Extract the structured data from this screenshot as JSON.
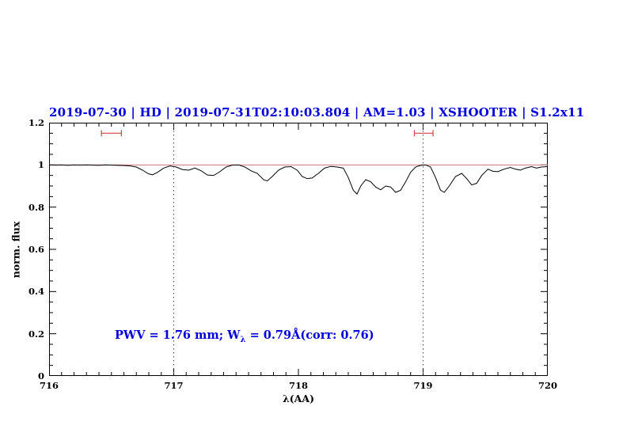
{
  "chart_data": {
    "type": "line",
    "title": "2019-07-30 | HD | 2019-07-31T02:10:03.804 | AM=1.03 | XSHOOTER | S1.2x11",
    "title_color": "#0000dd",
    "xlabel": "λ(AA)",
    "ylabel": "norm. flux",
    "xlim": [
      716,
      720
    ],
    "ylim": [
      0,
      1.2
    ],
    "x_major_ticks": [
      716,
      717,
      718,
      719,
      720
    ],
    "x_tick_labels": [
      "716",
      "717",
      "718",
      "719",
      "720"
    ],
    "x_minor_step": 0.1,
    "y_major_ticks": [
      0,
      0.2,
      0.4,
      0.6,
      0.8,
      1,
      1.2
    ],
    "y_tick_labels": [
      "0",
      "0.2",
      "0.4",
      "0.6",
      "0.8",
      "1",
      "1.2"
    ],
    "y_minor_step": 0.05,
    "grid": "off",
    "vlines": [
      {
        "x": 717,
        "style": "dotted",
        "color": "#444444"
      },
      {
        "x": 719,
        "style": "dotted",
        "color": "#444444"
      }
    ],
    "hline": {
      "y": 1.0,
      "color": "#cc7777"
    },
    "range_markers": [
      {
        "x1": 716.42,
        "x2": 716.58,
        "y": 1.15,
        "color": "#cc4444"
      },
      {
        "x1": 718.93,
        "x2": 719.08,
        "y": 1.15,
        "color": "#cc4444"
      }
    ],
    "annotation": {
      "prefix": "PWV = 1.76 mm; W",
      "sub": "λ",
      "suffix": " = 0.79Å(corr: 0.76)",
      "color": "#0000dd"
    },
    "series": [
      {
        "name": "telluric-spectrum",
        "color": "#000000",
        "points": [
          [
            716.0,
            1.0
          ],
          [
            716.05,
            0.999
          ],
          [
            716.1,
            1.0
          ],
          [
            716.15,
            0.998
          ],
          [
            716.2,
            1.0
          ],
          [
            716.25,
            0.999
          ],
          [
            716.3,
            1.0
          ],
          [
            716.35,
            0.999
          ],
          [
            716.4,
            0.998
          ],
          [
            716.45,
            1.0
          ],
          [
            716.5,
            0.999
          ],
          [
            716.55,
            0.998
          ],
          [
            716.6,
            0.997
          ],
          [
            716.65,
            0.995
          ],
          [
            716.7,
            0.99
          ],
          [
            716.75,
            0.975
          ],
          [
            716.8,
            0.957
          ],
          [
            716.83,
            0.953
          ],
          [
            716.87,
            0.965
          ],
          [
            716.92,
            0.985
          ],
          [
            716.97,
            0.995
          ],
          [
            717.02,
            0.99
          ],
          [
            717.07,
            0.978
          ],
          [
            717.12,
            0.975
          ],
          [
            717.17,
            0.985
          ],
          [
            717.22,
            0.972
          ],
          [
            717.27,
            0.952
          ],
          [
            717.32,
            0.95
          ],
          [
            717.37,
            0.968
          ],
          [
            717.42,
            0.99
          ],
          [
            717.47,
            0.999
          ],
          [
            717.52,
            1.0
          ],
          [
            717.57,
            0.99
          ],
          [
            717.62,
            0.972
          ],
          [
            717.67,
            0.96
          ],
          [
            717.72,
            0.93
          ],
          [
            717.75,
            0.924
          ],
          [
            717.79,
            0.945
          ],
          [
            717.84,
            0.975
          ],
          [
            717.89,
            0.99
          ],
          [
            717.94,
            0.992
          ],
          [
            717.99,
            0.975
          ],
          [
            718.03,
            0.945
          ],
          [
            718.07,
            0.935
          ],
          [
            718.11,
            0.938
          ],
          [
            718.16,
            0.96
          ],
          [
            718.21,
            0.985
          ],
          [
            718.26,
            0.993
          ],
          [
            718.31,
            0.99
          ],
          [
            718.36,
            0.985
          ],
          [
            718.4,
            0.94
          ],
          [
            718.44,
            0.88
          ],
          [
            718.47,
            0.862
          ],
          [
            718.5,
            0.9
          ],
          [
            718.54,
            0.93
          ],
          [
            718.58,
            0.92
          ],
          [
            718.62,
            0.895
          ],
          [
            718.66,
            0.882
          ],
          [
            718.7,
            0.9
          ],
          [
            718.74,
            0.895
          ],
          [
            718.78,
            0.87
          ],
          [
            718.82,
            0.88
          ],
          [
            718.86,
            0.92
          ],
          [
            718.9,
            0.965
          ],
          [
            718.94,
            0.99
          ],
          [
            718.98,
            0.998
          ],
          [
            719.02,
            1.0
          ],
          [
            719.06,
            0.99
          ],
          [
            719.1,
            0.94
          ],
          [
            719.14,
            0.88
          ],
          [
            719.17,
            0.87
          ],
          [
            719.21,
            0.9
          ],
          [
            719.26,
            0.945
          ],
          [
            719.31,
            0.96
          ],
          [
            719.35,
            0.935
          ],
          [
            719.39,
            0.905
          ],
          [
            719.43,
            0.913
          ],
          [
            719.47,
            0.95
          ],
          [
            719.52,
            0.98
          ],
          [
            719.56,
            0.97
          ],
          [
            719.6,
            0.968
          ],
          [
            719.65,
            0.98
          ],
          [
            719.7,
            0.988
          ],
          [
            719.74,
            0.98
          ],
          [
            719.78,
            0.975
          ],
          [
            719.82,
            0.985
          ],
          [
            719.87,
            0.992
          ],
          [
            719.91,
            0.985
          ],
          [
            719.95,
            0.99
          ],
          [
            720.0,
            0.992
          ]
        ]
      }
    ]
  }
}
